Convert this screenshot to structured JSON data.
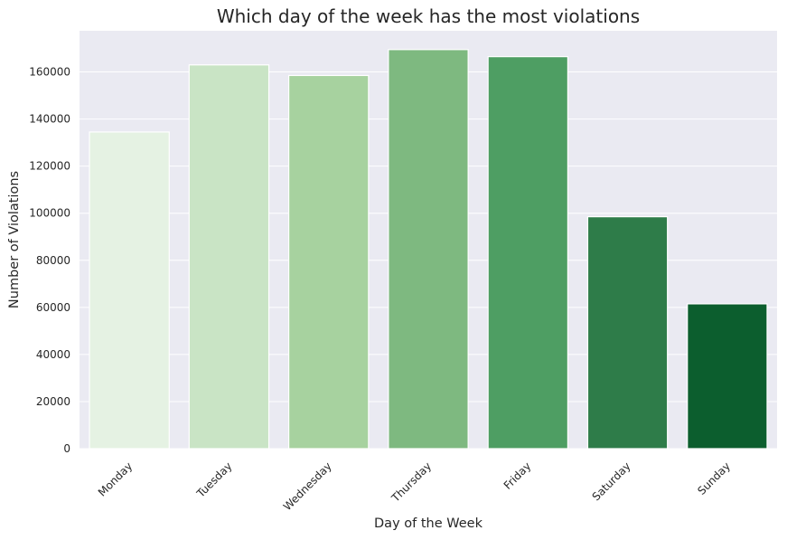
{
  "chart_data": {
    "type": "bar",
    "title": "Which day of the week has the most violations",
    "xlabel": "Day of the Week",
    "ylabel": "Number of Violations",
    "categories": [
      "Monday",
      "Tuesday",
      "Wednesday",
      "Thursday",
      "Friday",
      "Saturday",
      "Sunday"
    ],
    "values": [
      134500,
      163000,
      158500,
      169500,
      166500,
      98500,
      61500
    ],
    "ylim": [
      0,
      177500
    ],
    "yticks": [
      0,
      20000,
      40000,
      60000,
      80000,
      100000,
      120000,
      140000,
      160000
    ],
    "ytick_labels": [
      "0",
      "20000",
      "40000",
      "60000",
      "80000",
      "100000",
      "120000",
      "140000",
      "160000"
    ],
    "grid": true,
    "colors": {
      "plot_background": "#eaeaf2",
      "grid": "#ffffff",
      "bar_edge": "#ffffff",
      "bars": [
        "#e5f2e3",
        "#c9e4c5",
        "#a7d29f",
        "#7eb980",
        "#4e9e63",
        "#2e7c49",
        "#0c5e2e"
      ]
    }
  }
}
